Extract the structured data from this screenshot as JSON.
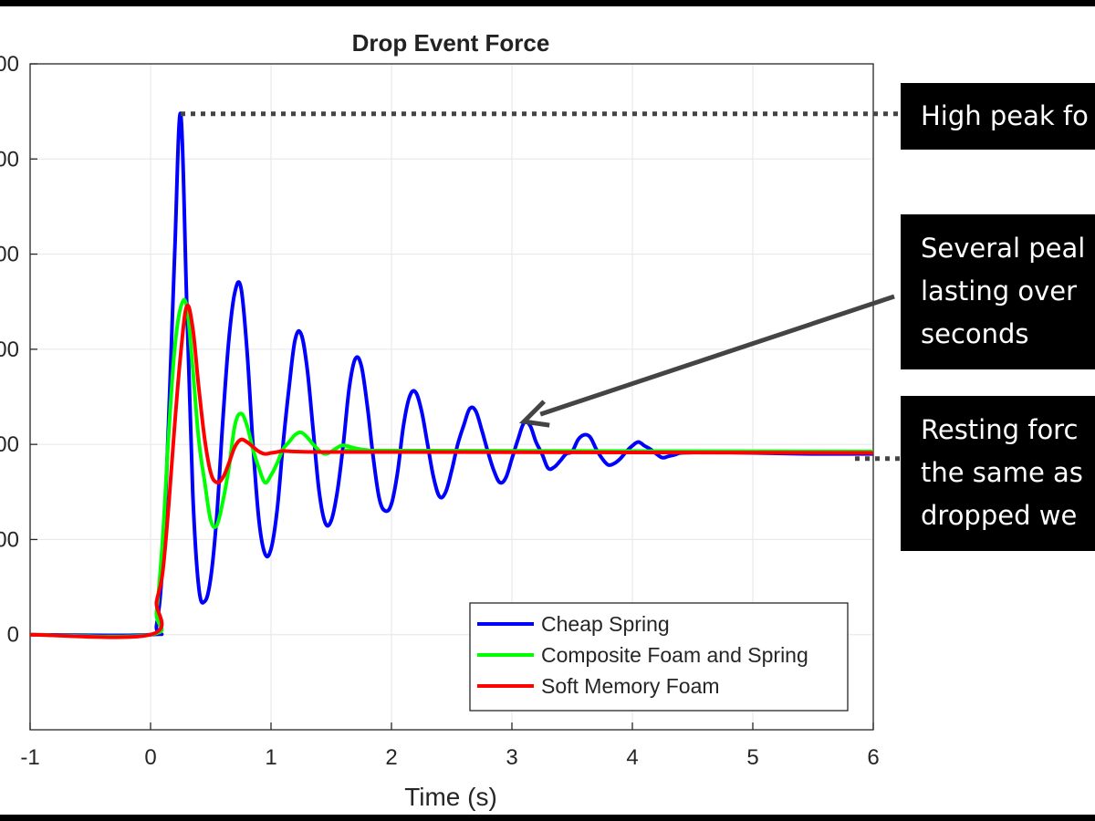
{
  "chart_data": {
    "type": "line",
    "title": "Drop Event Force",
    "xlabel": "Time (s)",
    "ylabel": "",
    "xlim": [
      -1,
      6
    ],
    "ylim": [
      -200,
      1200
    ],
    "xticks": [
      "-1",
      "0",
      "1",
      "2",
      "3",
      "4",
      "5",
      "6"
    ],
    "yticks_visible": [
      "0",
      "00",
      "00",
      "00",
      "00",
      "00",
      "00",
      "00"
    ],
    "grid": true,
    "legend_position": "bottom-right",
    "series": [
      {
        "name": "Cheap Spring",
        "color": "#0000ff",
        "x": [
          -1,
          0,
          0.05,
          0.1,
          0.15,
          0.2,
          0.25,
          0.3,
          0.35,
          0.4,
          0.45,
          0.5,
          0.55,
          0.6,
          0.65,
          0.7,
          0.75,
          0.8,
          0.85,
          0.9,
          0.95,
          1.0,
          1.05,
          1.1,
          1.15,
          1.2,
          1.25,
          1.3,
          1.35,
          1.4,
          1.45,
          1.5,
          1.55,
          1.6,
          1.65,
          1.7,
          1.75,
          1.8,
          1.85,
          1.9,
          1.95,
          2.0,
          2.05,
          2.1,
          2.15,
          2.2,
          2.25,
          2.3,
          2.35,
          2.4,
          2.45,
          2.5,
          2.55,
          2.6,
          2.65,
          2.7,
          2.75,
          2.8,
          2.85,
          2.9,
          2.95,
          3.0,
          3.05,
          3.1,
          3.15,
          3.2,
          3.25,
          3.3,
          3.35,
          3.4,
          3.45,
          3.5,
          3.55,
          3.6,
          3.65,
          3.7,
          3.75,
          3.8,
          3.85,
          3.9,
          3.95,
          4.0,
          4.05,
          4.1,
          4.15,
          4.2,
          4.25,
          4.3,
          4.35,
          4.4,
          4.5,
          4.6,
          4.8,
          5.0,
          5.5,
          6.0
        ],
        "y": [
          0,
          0,
          20,
          150,
          450,
          800,
          1095,
          700,
          300,
          100,
          70,
          120,
          250,
          450,
          620,
          720,
          730,
          600,
          400,
          240,
          170,
          180,
          260,
          400,
          520,
          620,
          632,
          560,
          430,
          300,
          235,
          240,
          300,
          400,
          520,
          580,
          565,
          480,
          370,
          285,
          260,
          275,
          340,
          440,
          500,
          510,
          470,
          400,
          330,
          290,
          300,
          345,
          400,
          440,
          475,
          470,
          430,
          385,
          345,
          320,
          330,
          370,
          410,
          445,
          440,
          405,
          380,
          350,
          352,
          365,
          380,
          385,
          410,
          420,
          415,
          390,
          370,
          357,
          360,
          370,
          385,
          397,
          405,
          397,
          390,
          380,
          372,
          375,
          378,
          382,
          383,
          385,
          383,
          382,
          380,
          380
        ]
      },
      {
        "name": "Composite Foam and Spring",
        "color": "#00ff00",
        "x": [
          -1,
          0,
          0.05,
          0.1,
          0.15,
          0.2,
          0.25,
          0.3,
          0.35,
          0.4,
          0.45,
          0.5,
          0.55,
          0.6,
          0.65,
          0.7,
          0.75,
          0.8,
          0.85,
          0.9,
          0.95,
          1.0,
          1.05,
          1.1,
          1.15,
          1.2,
          1.25,
          1.3,
          1.35,
          1.4,
          1.45,
          1.5,
          1.55,
          1.6,
          1.7,
          1.8,
          2.0,
          6.0
        ],
        "y": [
          0,
          0,
          50,
          200,
          420,
          600,
          688,
          690,
          560,
          410,
          320,
          240,
          230,
          280,
          350,
          440,
          465,
          440,
          390,
          350,
          320,
          335,
          360,
          390,
          405,
          420,
          425,
          415,
          400,
          387,
          380,
          385,
          393,
          398,
          392,
          388,
          387,
          385
        ]
      },
      {
        "name": "Soft Memory Foam",
        "color": "#ff0000",
        "x": [
          -1,
          0,
          0.05,
          0.1,
          0.15,
          0.2,
          0.25,
          0.3,
          0.35,
          0.4,
          0.45,
          0.5,
          0.55,
          0.6,
          0.65,
          0.7,
          0.75,
          0.8,
          0.85,
          0.9,
          0.95,
          1.0,
          1.05,
          1.1,
          1.2,
          1.4,
          2.0,
          6.0
        ],
        "y": [
          0,
          0,
          70,
          130,
          270,
          440,
          590,
          690,
          645,
          520,
          410,
          340,
          320,
          330,
          360,
          395,
          410,
          405,
          395,
          385,
          380,
          382,
          384,
          386,
          385,
          384,
          384,
          382
        ]
      }
    ]
  },
  "callouts": [
    {
      "lines": [
        "High peak fo"
      ]
    },
    {
      "lines": [
        "Several peal",
        "lasting over",
        "seconds"
      ]
    },
    {
      "lines": [
        "Resting forc",
        "the same as",
        "dropped we"
      ]
    }
  ],
  "colors": {
    "background": "#000000",
    "plot_bg": "#ffffff",
    "grid": "#e6e6e6",
    "arrow": "#444444"
  }
}
